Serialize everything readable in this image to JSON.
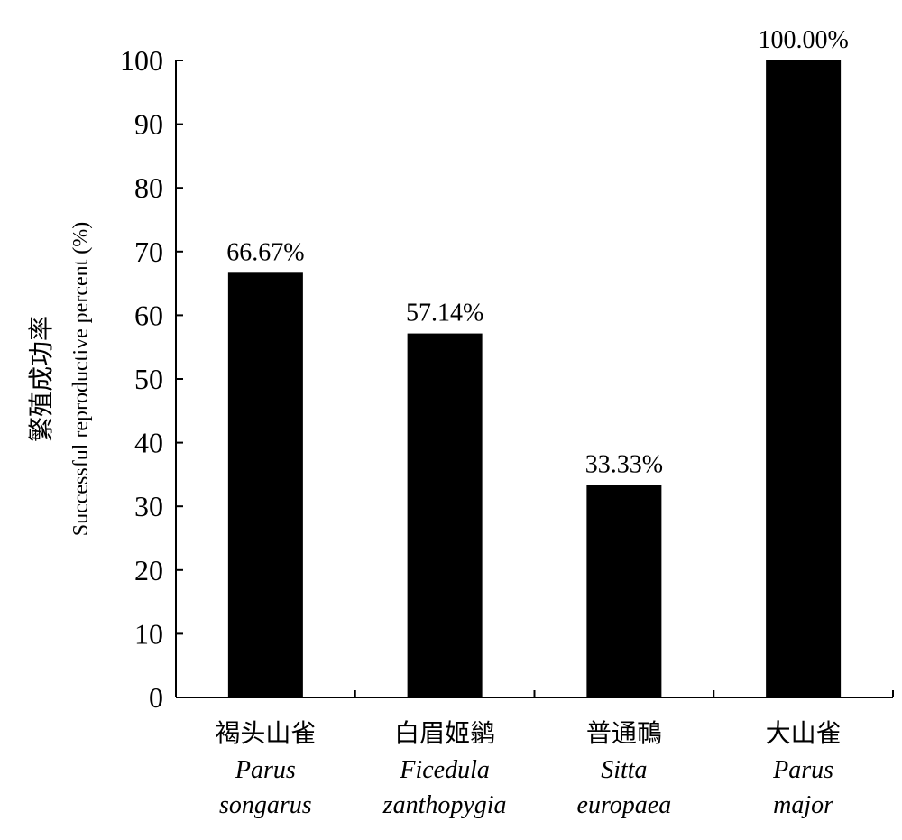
{
  "chart_data": {
    "type": "bar",
    "categories": [
      {
        "cn": "褐头山雀",
        "latin": [
          "Parus",
          "songarus"
        ]
      },
      {
        "cn": "白眉姬鹟",
        "latin": [
          "Ficedula",
          "zanthopygia"
        ]
      },
      {
        "cn": "普通鳾",
        "latin": [
          "Sitta",
          "europaea"
        ]
      },
      {
        "cn": "大山雀",
        "latin": [
          "Parus",
          "major"
        ]
      }
    ],
    "values": [
      66.67,
      57.14,
      33.33,
      100.0
    ],
    "data_labels": [
      "66.67%",
      "57.14%",
      "33.33%",
      "100.00%"
    ],
    "ylabel_cn": "繁殖成功率",
    "ylabel_en": "Successful reproductive percent (%)",
    "ylim": [
      0,
      100
    ],
    "yticks": [
      0,
      10,
      20,
      30,
      40,
      50,
      60,
      70,
      80,
      90,
      100
    ],
    "bar_color": "#000000",
    "grid": false,
    "legend": "none"
  }
}
